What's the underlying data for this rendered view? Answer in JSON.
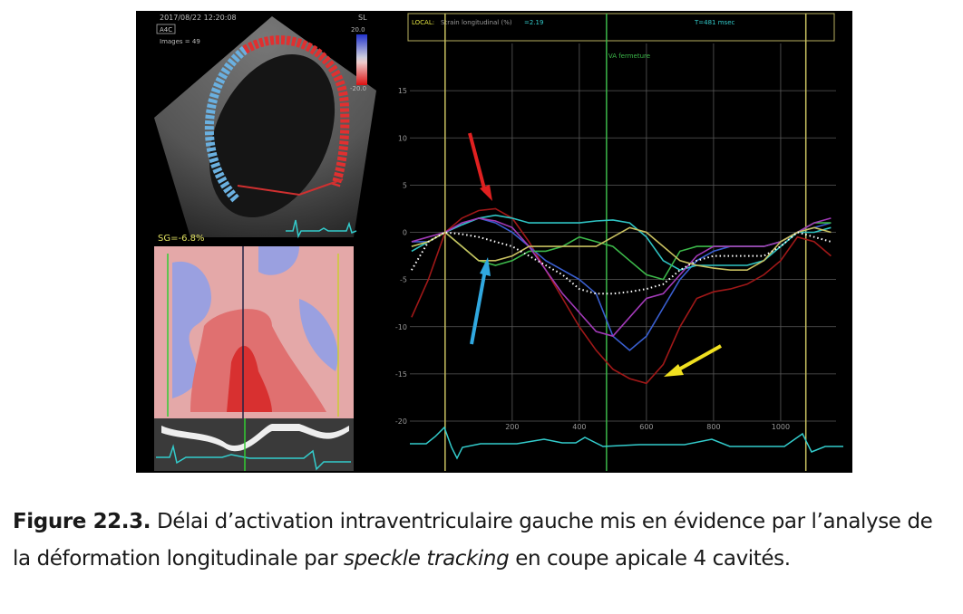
{
  "figure": {
    "echo": {
      "timestamp": "2017/08/22 12:20:08",
      "view": "A4C",
      "images": "Images = 49",
      "scale_title": "SL",
      "scale_max": "20.0",
      "scale_min": "-20.0",
      "global_strain": "SG=-6.8%"
    },
    "header": {
      "local": "LOCAL:",
      "measure": "Strain longitudinal (%)",
      "value": "=2.19",
      "time": "T=481 msec"
    }
  },
  "chart_data": {
    "type": "line",
    "x": [
      -100,
      -50,
      0,
      50,
      100,
      150,
      200,
      250,
      300,
      350,
      400,
      450,
      500,
      550,
      600,
      650,
      700,
      750,
      800,
      850,
      900,
      950,
      1000,
      1050,
      1100,
      1150
    ],
    "series": [
      {
        "color": "#a01818",
        "values": [
          -9,
          -5,
          0,
          1.5,
          2.3,
          2.5,
          1.5,
          -1,
          -4,
          -7,
          -10,
          -12.5,
          -14.5,
          -15.5,
          -16,
          -14,
          -10,
          -7,
          -6.3,
          -6,
          -5.5,
          -4.5,
          -3,
          -0.5,
          -1,
          -2.5
        ]
      },
      {
        "color": "#3a5fd0",
        "values": [
          -1,
          -1,
          0,
          0.8,
          1.5,
          1,
          0,
          -1.5,
          -3,
          -4,
          -5,
          -6.5,
          -11,
          -12.5,
          -11,
          -8,
          -5,
          -3,
          -2,
          -1.5,
          -1.5,
          -1.5,
          -1,
          0,
          0.5,
          1
        ]
      },
      {
        "color": "#2fc4c4",
        "values": [
          -2,
          -1,
          0,
          0.8,
          1.5,
          1.8,
          1.5,
          1,
          1,
          1,
          1,
          1.2,
          1.3,
          1,
          -0.5,
          -3,
          -4,
          -3.5,
          -3.5,
          -3.5,
          -3.5,
          -3,
          -1.5,
          0,
          0,
          0.5
        ]
      },
      {
        "color": "#3cb84a",
        "values": [
          -1.5,
          -1,
          0,
          -1.5,
          -3,
          -3.5,
          -3,
          -2,
          -2,
          -1.5,
          -0.5,
          -1,
          -1.5,
          -3,
          -4.5,
          -5,
          -2,
          -1.5,
          -1.5,
          -1.5,
          -1.5,
          -1.5,
          -1,
          0,
          1,
          1
        ]
      },
      {
        "color": "#a23ab8",
        "values": [
          -1,
          -0.5,
          0,
          1,
          1.5,
          1.2,
          0.5,
          -1.5,
          -4,
          -6.5,
          -8.5,
          -10.5,
          -11,
          -9,
          -7,
          -6.5,
          -4.5,
          -2.5,
          -1.5,
          -1.5,
          -1.5,
          -1.5,
          -1,
          0,
          1,
          1.5
        ]
      },
      {
        "color": "#c8c060",
        "values": [
          -1.5,
          -1,
          0,
          -1.5,
          -3,
          -3,
          -2.5,
          -1.5,
          -1.5,
          -1.5,
          -1.5,
          -1.5,
          -0.5,
          0.5,
          0,
          -1.5,
          -3,
          -3.5,
          -3.8,
          -4,
          -4,
          -3,
          -1,
          0,
          0.5,
          0
        ]
      },
      {
        "color": "#ffffff",
        "style": "dotted",
        "values": [
          -4,
          -1,
          0,
          -0.2,
          -0.5,
          -1,
          -1.5,
          -2.5,
          -3.5,
          -4.5,
          -6,
          -6.5,
          -6.5,
          -6.3,
          -6,
          -5.5,
          -4,
          -3,
          -2.5,
          -2.5,
          -2.5,
          -2.5,
          -1.5,
          0,
          -0.5,
          -1
        ]
      }
    ],
    "xlim": [
      -105,
      1165
    ],
    "xticks": [
      200,
      400,
      600,
      800,
      1000
    ],
    "ylim": [
      -20,
      20
    ],
    "yticks": [
      -20,
      -15,
      -10,
      -5,
      0,
      5,
      10,
      15
    ],
    "grid": true,
    "vlines": [
      {
        "x": 0,
        "color": "#c8c060"
      },
      {
        "x": 481,
        "color": "#3cb84a",
        "label": "VA fermeture"
      },
      {
        "x": 1075,
        "color": "#c8c060"
      }
    ]
  },
  "caption": {
    "label": "Figure 22.3.",
    "text_1": "Délai d’activation intraventriculaire gauche mis en évidence par l’analyse de la déformation longitudinale par",
    "emphasis": "speckle tracking",
    "text_2": "en coupe apicale 4 cavités."
  }
}
